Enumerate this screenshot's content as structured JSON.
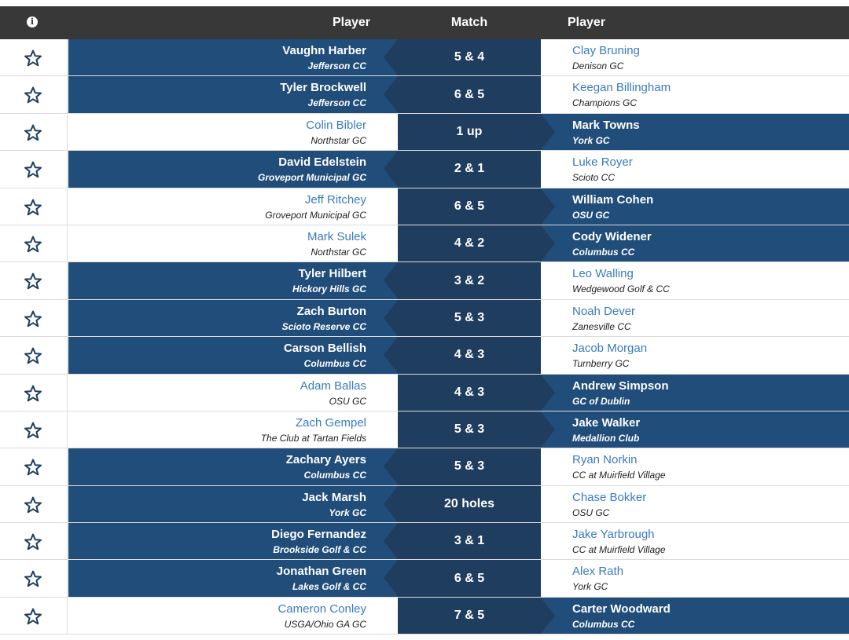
{
  "header": {
    "info_icon": "info-icon",
    "left_player_label": "Player",
    "match_label": "Match",
    "right_player_label": "Player"
  },
  "colors": {
    "header_bg": "#383838",
    "winner_bg": "#214d7a",
    "match_bg": "#1f3d5f",
    "loser_name": "#3a7bbf"
  },
  "matches": [
    {
      "left": {
        "name": "Vaughn Harber",
        "club": "Jefferson CC"
      },
      "result": "5 & 4",
      "right": {
        "name": "Clay Bruning",
        "club": "Denison GC"
      },
      "winner": "left"
    },
    {
      "left": {
        "name": "Tyler Brockwell",
        "club": "Jefferson CC"
      },
      "result": "6 & 5",
      "right": {
        "name": "Keegan Billingham",
        "club": "Champions GC"
      },
      "winner": "left"
    },
    {
      "left": {
        "name": "Colin Bibler",
        "club": "Northstar GC"
      },
      "result": "1 up",
      "right": {
        "name": "Mark Towns",
        "club": "York GC"
      },
      "winner": "right"
    },
    {
      "left": {
        "name": "David Edelstein",
        "club": "Groveport Municipal GC"
      },
      "result": "2 & 1",
      "right": {
        "name": "Luke Royer",
        "club": "Scioto CC"
      },
      "winner": "left"
    },
    {
      "left": {
        "name": "Jeff Ritchey",
        "club": "Groveport Municipal GC"
      },
      "result": "6 & 5",
      "right": {
        "name": "William Cohen",
        "club": "OSU GC"
      },
      "winner": "right"
    },
    {
      "left": {
        "name": "Mark Sulek",
        "club": "Northstar GC"
      },
      "result": "4 & 2",
      "right": {
        "name": "Cody Widener",
        "club": "Columbus CC"
      },
      "winner": "right"
    },
    {
      "left": {
        "name": "Tyler Hilbert",
        "club": "Hickory Hills GC"
      },
      "result": "3 & 2",
      "right": {
        "name": "Leo Walling",
        "club": "Wedgewood Golf & CC"
      },
      "winner": "left"
    },
    {
      "left": {
        "name": "Zach Burton",
        "club": "Scioto Reserve CC"
      },
      "result": "5 & 3",
      "right": {
        "name": "Noah Dever",
        "club": "Zanesville CC"
      },
      "winner": "left"
    },
    {
      "left": {
        "name": "Carson Bellish",
        "club": "Columbus CC"
      },
      "result": "4 & 3",
      "right": {
        "name": "Jacob Morgan",
        "club": "Turnberry GC"
      },
      "winner": "left"
    },
    {
      "left": {
        "name": "Adam Ballas",
        "club": "OSU GC"
      },
      "result": "4 & 3",
      "right": {
        "name": "Andrew Simpson",
        "club": "GC of Dublin"
      },
      "winner": "right"
    },
    {
      "left": {
        "name": "Zach Gempel",
        "club": "The Club at Tartan Fields"
      },
      "result": "5 & 3",
      "right": {
        "name": "Jake Walker",
        "club": "Medallion Club"
      },
      "winner": "right"
    },
    {
      "left": {
        "name": "Zachary Ayers",
        "club": "Columbus CC"
      },
      "result": "5 & 3",
      "right": {
        "name": "Ryan Norkin",
        "club": "CC at Muirfield Village"
      },
      "winner": "left"
    },
    {
      "left": {
        "name": "Jack Marsh",
        "club": "York GC"
      },
      "result": "20 holes",
      "right": {
        "name": "Chase Bokker",
        "club": "OSU GC"
      },
      "winner": "left"
    },
    {
      "left": {
        "name": "Diego Fernandez",
        "club": "Brookside Golf & CC"
      },
      "result": "3 & 1",
      "right": {
        "name": "Jake Yarbrough",
        "club": "CC at Muirfield Village"
      },
      "winner": "left"
    },
    {
      "left": {
        "name": "Jonathan Green",
        "club": "Lakes Golf & CC"
      },
      "result": "6 & 5",
      "right": {
        "name": "Alex Rath",
        "club": "York GC"
      },
      "winner": "left"
    },
    {
      "left": {
        "name": "Cameron Conley",
        "club": "USGA/Ohio GA GC"
      },
      "result": "7 & 5",
      "right": {
        "name": "Carter Woodward",
        "club": "Columbus CC"
      },
      "winner": "right"
    }
  ]
}
